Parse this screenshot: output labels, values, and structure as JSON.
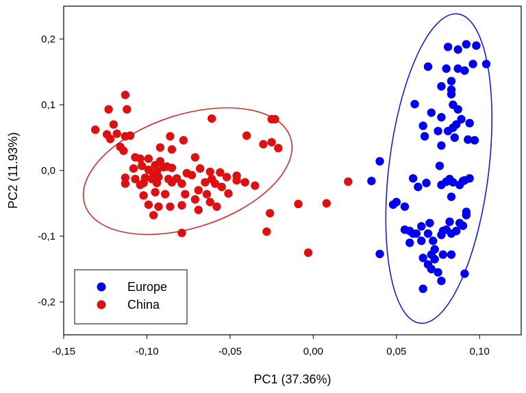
{
  "chart_data": {
    "type": "scatter",
    "xlabel": "PC1 (37.36%)",
    "ylabel": "PC2 (11.93%)",
    "xlim": [
      -0.15,
      0.125
    ],
    "ylim": [
      -0.25,
      0.25
    ],
    "x_ticks": [
      -0.15,
      -0.1,
      -0.05,
      0.0,
      0.05,
      0.1
    ],
    "x_tick_labels": [
      "-0,15",
      "-0,10",
      "-0,05",
      "0,00",
      "0,05",
      "0,10"
    ],
    "y_ticks": [
      -0.2,
      -0.1,
      0.0,
      0.1,
      0.2
    ],
    "y_tick_labels": [
      "-0,2",
      "-0,1",
      "0,0",
      "0,1",
      "0,2"
    ],
    "grid": false,
    "legend_position": "bottom-left",
    "series": [
      {
        "name": "Europe",
        "color": "#0000ee",
        "ellipse": {
          "cx": 0.0755,
          "cy": 0.003,
          "rx": 0.03,
          "ry": 0.237,
          "angle_deg": 7,
          "color": "#1a1ad6"
        },
        "points": [
          [
            0.081,
            0.188
          ],
          [
            0.087,
            0.184
          ],
          [
            0.092,
            0.192
          ],
          [
            0.098,
            0.19
          ],
          [
            0.104,
            0.162
          ],
          [
            0.096,
            0.162
          ],
          [
            0.087,
            0.155
          ],
          [
            0.091,
            0.152
          ],
          [
            0.08,
            0.155
          ],
          [
            0.069,
            0.158
          ],
          [
            0.083,
            0.136
          ],
          [
            0.077,
            0.128
          ],
          [
            0.083,
            0.123
          ],
          [
            0.083,
            0.116
          ],
          [
            0.084,
            0.1
          ],
          [
            0.087,
            0.093
          ],
          [
            0.061,
            0.101
          ],
          [
            0.071,
            0.088
          ],
          [
            0.077,
            0.081
          ],
          [
            0.089,
            0.078
          ],
          [
            0.086,
            0.07
          ],
          [
            0.084,
            0.065
          ],
          [
            0.094,
            0.072
          ],
          [
            0.066,
            0.068
          ],
          [
            0.075,
            0.06
          ],
          [
            0.081,
            0.06
          ],
          [
            0.093,
            0.047
          ],
          [
            0.097,
            0.046
          ],
          [
            0.067,
            0.052
          ],
          [
            0.085,
            0.05
          ],
          [
            0.077,
            0.038
          ],
          [
            0.076,
            0.007
          ],
          [
            0.091,
            -0.015
          ],
          [
            0.088,
            -0.022
          ],
          [
            0.094,
            -0.012
          ],
          [
            0.08,
            -0.017
          ],
          [
            0.084,
            -0.018
          ],
          [
            0.09,
            -0.016
          ],
          [
            0.082,
            -0.013
          ],
          [
            0.077,
            -0.022
          ],
          [
            0.068,
            -0.019
          ],
          [
            0.063,
            -0.025
          ],
          [
            0.06,
            -0.012
          ],
          [
            0.04,
            0.014
          ],
          [
            0.035,
            -0.016
          ],
          [
            0.048,
            -0.052
          ],
          [
            0.05,
            -0.048
          ],
          [
            0.055,
            -0.055
          ],
          [
            0.083,
            -0.04
          ],
          [
            0.092,
            -0.063
          ],
          [
            0.065,
            -0.085
          ],
          [
            0.07,
            -0.08
          ],
          [
            0.082,
            -0.078
          ],
          [
            0.088,
            -0.08
          ],
          [
            0.078,
            -0.092
          ],
          [
            0.08,
            -0.09
          ],
          [
            0.086,
            -0.092
          ],
          [
            0.09,
            -0.084
          ],
          [
            0.092,
            -0.068
          ],
          [
            0.055,
            -0.09
          ],
          [
            0.058,
            -0.092
          ],
          [
            0.06,
            -0.096
          ],
          [
            0.058,
            -0.11
          ],
          [
            0.065,
            -0.107
          ],
          [
            0.069,
            -0.096
          ],
          [
            0.072,
            -0.107
          ],
          [
            0.062,
            -0.096
          ],
          [
            0.077,
            -0.098
          ],
          [
            0.083,
            -0.096
          ],
          [
            0.066,
            -0.133
          ],
          [
            0.071,
            -0.128
          ],
          [
            0.078,
            -0.128
          ],
          [
            0.083,
            -0.128
          ],
          [
            0.073,
            -0.135
          ],
          [
            0.069,
            -0.143
          ],
          [
            0.071,
            -0.15
          ],
          [
            0.075,
            -0.155
          ],
          [
            0.077,
            -0.168
          ],
          [
            0.066,
            -0.18
          ],
          [
            0.091,
            -0.157
          ],
          [
            0.04,
            -0.127
          ],
          [
            0.073,
            -0.12
          ]
        ]
      },
      {
        "name": "China",
        "color": "#dd1111",
        "ellipse": {
          "cx": -0.0755,
          "cy": -0.001,
          "rx": 0.065,
          "ry": 0.086,
          "angle_deg": -18,
          "color": "#d42a2a"
        },
        "points": [
          [
            -0.113,
            0.115
          ],
          [
            -0.123,
            0.093
          ],
          [
            -0.112,
            0.093
          ],
          [
            -0.12,
            0.07
          ],
          [
            -0.131,
            0.062
          ],
          [
            -0.124,
            0.055
          ],
          [
            -0.118,
            0.056
          ],
          [
            -0.122,
            0.048
          ],
          [
            -0.11,
            0.053
          ],
          [
            -0.113,
            0.052
          ],
          [
            -0.116,
            0.036
          ],
          [
            -0.114,
            0.03
          ],
          [
            -0.107,
            0.02
          ],
          [
            -0.104,
            0.018
          ],
          [
            -0.099,
            0.018
          ],
          [
            -0.092,
            0.014
          ],
          [
            -0.088,
            0.006
          ],
          [
            -0.086,
            0.052
          ],
          [
            -0.078,
            0.046
          ],
          [
            -0.085,
            0.032
          ],
          [
            -0.071,
            0.02
          ],
          [
            -0.092,
            0.035
          ],
          [
            -0.095,
            0.008
          ],
          [
            -0.09,
            0.005
          ],
          [
            -0.085,
            0.004
          ],
          [
            -0.094,
            -0.001
          ],
          [
            -0.103,
            0.007
          ],
          [
            -0.108,
            0.003
          ],
          [
            -0.099,
            0.001
          ],
          [
            -0.096,
            -0.005
          ],
          [
            -0.101,
            -0.011
          ],
          [
            -0.097,
            -0.013
          ],
          [
            -0.093,
            -0.01
          ],
          [
            -0.087,
            -0.013
          ],
          [
            -0.082,
            -0.012
          ],
          [
            -0.076,
            -0.004
          ],
          [
            -0.068,
            0.003
          ],
          [
            -0.073,
            -0.007
          ],
          [
            -0.079,
            -0.02
          ],
          [
            -0.085,
            -0.018
          ],
          [
            -0.094,
            -0.019
          ],
          [
            -0.102,
            -0.019
          ],
          [
            -0.107,
            -0.013
          ],
          [
            -0.104,
            -0.022
          ],
          [
            -0.113,
            -0.011
          ],
          [
            -0.113,
            -0.02
          ],
          [
            -0.095,
            -0.033
          ],
          [
            -0.102,
            -0.038
          ],
          [
            -0.089,
            -0.036
          ],
          [
            -0.077,
            -0.036
          ],
          [
            -0.069,
            -0.03
          ],
          [
            -0.071,
            -0.044
          ],
          [
            -0.065,
            -0.018
          ],
          [
            -0.061,
            -0.013
          ],
          [
            -0.059,
            -0.02
          ],
          [
            -0.055,
            -0.025
          ],
          [
            -0.052,
            -0.01
          ],
          [
            -0.056,
            -0.003
          ],
          [
            -0.062,
            -0.002
          ],
          [
            -0.046,
            -0.008
          ],
          [
            -0.046,
            -0.015
          ],
          [
            -0.041,
            -0.018
          ],
          [
            -0.035,
            -0.023
          ],
          [
            -0.064,
            -0.036
          ],
          [
            -0.069,
            -0.06
          ],
          [
            -0.079,
            -0.053
          ],
          [
            -0.086,
            -0.055
          ],
          [
            -0.093,
            -0.055
          ],
          [
            -0.099,
            -0.052
          ],
          [
            -0.096,
            -0.068
          ],
          [
            -0.062,
            -0.048
          ],
          [
            -0.058,
            -0.055
          ],
          [
            -0.051,
            -0.035
          ],
          [
            -0.079,
            -0.095
          ],
          [
            -0.028,
            -0.093
          ],
          [
            -0.026,
            -0.065
          ],
          [
            -0.061,
            0.079
          ],
          [
            -0.04,
            0.053
          ],
          [
            -0.03,
            0.04
          ],
          [
            -0.025,
            0.043
          ],
          [
            -0.021,
            0.034
          ],
          [
            -0.023,
            0.078
          ],
          [
            -0.025,
            0.078
          ],
          [
            -0.009,
            -0.051
          ],
          [
            -0.003,
            -0.125
          ],
          [
            0.008,
            -0.05
          ],
          [
            0.021,
            -0.017
          ]
        ]
      }
    ]
  }
}
